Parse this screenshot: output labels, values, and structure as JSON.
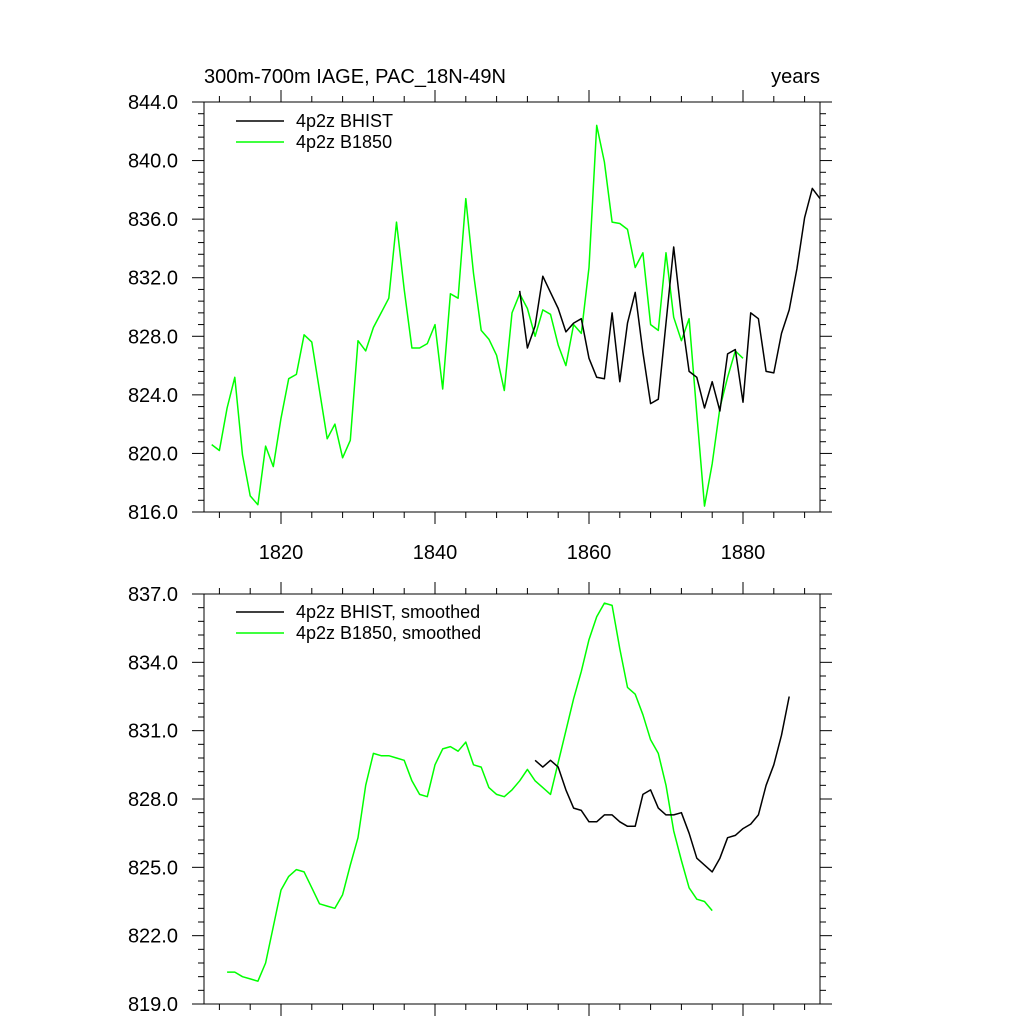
{
  "chart_data": [
    {
      "type": "line",
      "title_left": "300m-700m IAGE, PAC_18N-49N",
      "title_right": "years",
      "xlim": [
        1810,
        1890
      ],
      "ylim": [
        816,
        844
      ],
      "x_ticks": [
        1820,
        1840,
        1860,
        1880
      ],
      "x_tick_labels": [
        "1820",
        "1840",
        "1860",
        "1880"
      ],
      "y_ticks": [
        816,
        820,
        824,
        828,
        832,
        836,
        840,
        844
      ],
      "y_tick_labels": [
        "816.0",
        "820.0",
        "824.0",
        "828.0",
        "832.0",
        "836.0",
        "840.0",
        "844.0"
      ],
      "legend_position": "top-left",
      "series": [
        {
          "name": "4p2z BHIST",
          "color": "#000000",
          "x_start": 1851,
          "values": [
            831.1,
            827.2,
            828.7,
            832.1,
            831.0,
            829.9,
            828.3,
            828.9,
            829.2,
            826.5,
            825.2,
            825.1,
            829.6,
            824.9,
            828.9,
            831.0,
            826.9,
            823.4,
            823.7,
            828.9,
            834.1,
            829.4,
            825.6,
            825.2,
            823.1,
            824.9,
            822.9,
            826.8,
            827.1,
            823.5,
            829.6,
            829.2,
            825.6,
            825.5,
            828.2,
            829.8,
            832.6,
            836.1,
            838.1,
            837.4
          ]
        },
        {
          "name": "4p2z B1850",
          "color": "#00ff00",
          "x_start": 1811,
          "values": [
            820.6,
            820.2,
            823.1,
            825.2,
            819.9,
            817.1,
            816.5,
            820.5,
            819.1,
            822.4,
            825.1,
            825.4,
            828.1,
            827.6,
            824.3,
            821.0,
            822.0,
            819.7,
            820.9,
            827.7,
            827.0,
            828.6,
            829.6,
            830.6,
            835.8,
            831.2,
            827.2,
            827.2,
            827.5,
            828.8,
            824.4,
            830.9,
            830.6,
            837.4,
            832.3,
            828.4,
            827.8,
            826.7,
            824.3,
            829.6,
            830.9,
            829.9,
            828.0,
            829.8,
            829.5,
            827.4,
            826.0,
            828.8,
            828.2,
            832.7,
            842.4,
            839.9,
            835.8,
            835.7,
            835.3,
            832.7,
            833.7,
            828.8,
            828.4,
            833.7,
            829.3,
            827.7,
            829.2,
            822.7,
            816.4,
            819.3,
            823.1,
            825.2,
            827.0,
            826.5
          ]
        }
      ]
    },
    {
      "type": "line",
      "title_left": "",
      "title_right": "",
      "xlim": [
        1810,
        1890
      ],
      "ylim": [
        819,
        837
      ],
      "x_ticks": [
        1820,
        1840,
        1860,
        1880
      ],
      "x_tick_labels": [
        "",
        "",
        "",
        ""
      ],
      "y_ticks": [
        819,
        822,
        825,
        828,
        831,
        834,
        837
      ],
      "y_tick_labels": [
        "819.0",
        "822.0",
        "825.0",
        "828.0",
        "831.0",
        "834.0",
        "837.0"
      ],
      "legend_position": "top-left",
      "series": [
        {
          "name": "4p2z BHIST, smoothed",
          "color": "#000000",
          "x_start": 1853,
          "values": [
            829.7,
            829.4,
            829.7,
            829.4,
            828.4,
            827.6,
            827.5,
            827.0,
            827.0,
            827.3,
            827.3,
            827.0,
            826.8,
            826.8,
            828.2,
            828.4,
            827.6,
            827.3,
            827.3,
            827.4,
            826.5,
            825.4,
            825.1,
            824.8,
            825.4,
            826.3,
            826.4,
            826.7,
            826.9,
            827.3,
            828.6,
            829.5,
            830.8,
            832.5
          ]
        },
        {
          "name": "4p2z B1850, smoothed",
          "color": "#00ff00",
          "x_start": 1813,
          "values": [
            820.4,
            820.4,
            820.2,
            820.1,
            820.0,
            820.8,
            822.4,
            824.0,
            824.6,
            824.9,
            824.8,
            824.1,
            823.4,
            823.3,
            823.2,
            823.8,
            825.1,
            826.3,
            828.6,
            830.0,
            829.9,
            829.9,
            829.8,
            829.7,
            828.8,
            828.2,
            828.1,
            829.5,
            830.2,
            830.3,
            830.1,
            830.5,
            829.5,
            829.4,
            828.5,
            828.2,
            828.1,
            828.4,
            828.8,
            829.3,
            828.8,
            828.5,
            828.2,
            829.6,
            831.0,
            832.4,
            833.6,
            835.0,
            836.0,
            836.6,
            836.5,
            834.6,
            832.9,
            832.6,
            831.7,
            830.6,
            830.0,
            828.6,
            826.6,
            825.3,
            824.1,
            823.6,
            823.5,
            823.1
          ]
        }
      ]
    }
  ]
}
